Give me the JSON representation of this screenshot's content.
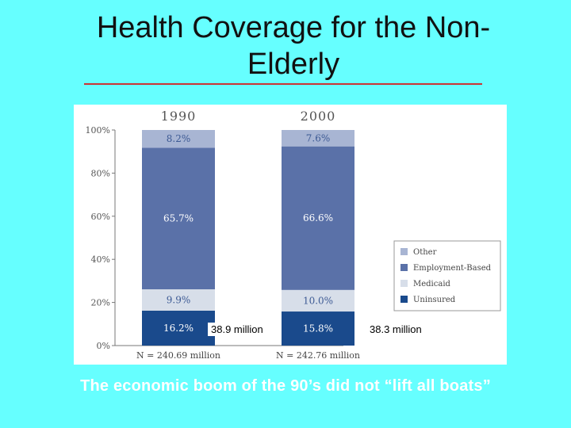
{
  "slide": {
    "title": "Health Coverage for the Non-Elderly",
    "footer": "The economic boom of the 90’s did not “lift all boats”"
  },
  "callouts": {
    "c1990": "38.9 million",
    "c2000": "38.3 million"
  },
  "colors": {
    "background": "#66ffff",
    "rule": "#cc3333",
    "other": "#a8b5d3",
    "employment": "#5a71a8",
    "medicaid": "#d7dee9",
    "uninsured": "#1a4a8c"
  },
  "chart_data": {
    "type": "bar",
    "stacked": true,
    "categories": [
      "1990",
      "2000"
    ],
    "category_notes": [
      "N = 240.69 million",
      "N = 242.76 million"
    ],
    "series": [
      {
        "name": "Uninsured",
        "values": [
          16.2,
          15.8
        ],
        "labels": [
          "16.2%",
          "15.8%"
        ],
        "color": "#1a4a8c",
        "label_color": "#ffffff"
      },
      {
        "name": "Medicaid",
        "values": [
          9.9,
          10.0
        ],
        "labels": [
          "9.9%",
          "10.0%"
        ],
        "color": "#d7dee9",
        "label_color": "#3d5a94"
      },
      {
        "name": "Employment-Based",
        "values": [
          65.7,
          66.6
        ],
        "labels": [
          "65.7%",
          "66.6%"
        ],
        "color": "#5a71a8",
        "label_color": "#ffffff"
      },
      {
        "name": "Other",
        "values": [
          8.2,
          7.6
        ],
        "labels": [
          "8.2%",
          "7.6%"
        ],
        "color": "#a8b5d3",
        "label_color": "#3d5a94"
      }
    ],
    "legend": [
      "Other",
      "Employment-Based",
      "Medicaid",
      "Uninsured"
    ],
    "legend_position": "right",
    "yticks": [
      "0%",
      "20%",
      "40%",
      "60%",
      "80%",
      "100%"
    ],
    "ylim": [
      0,
      100
    ]
  }
}
